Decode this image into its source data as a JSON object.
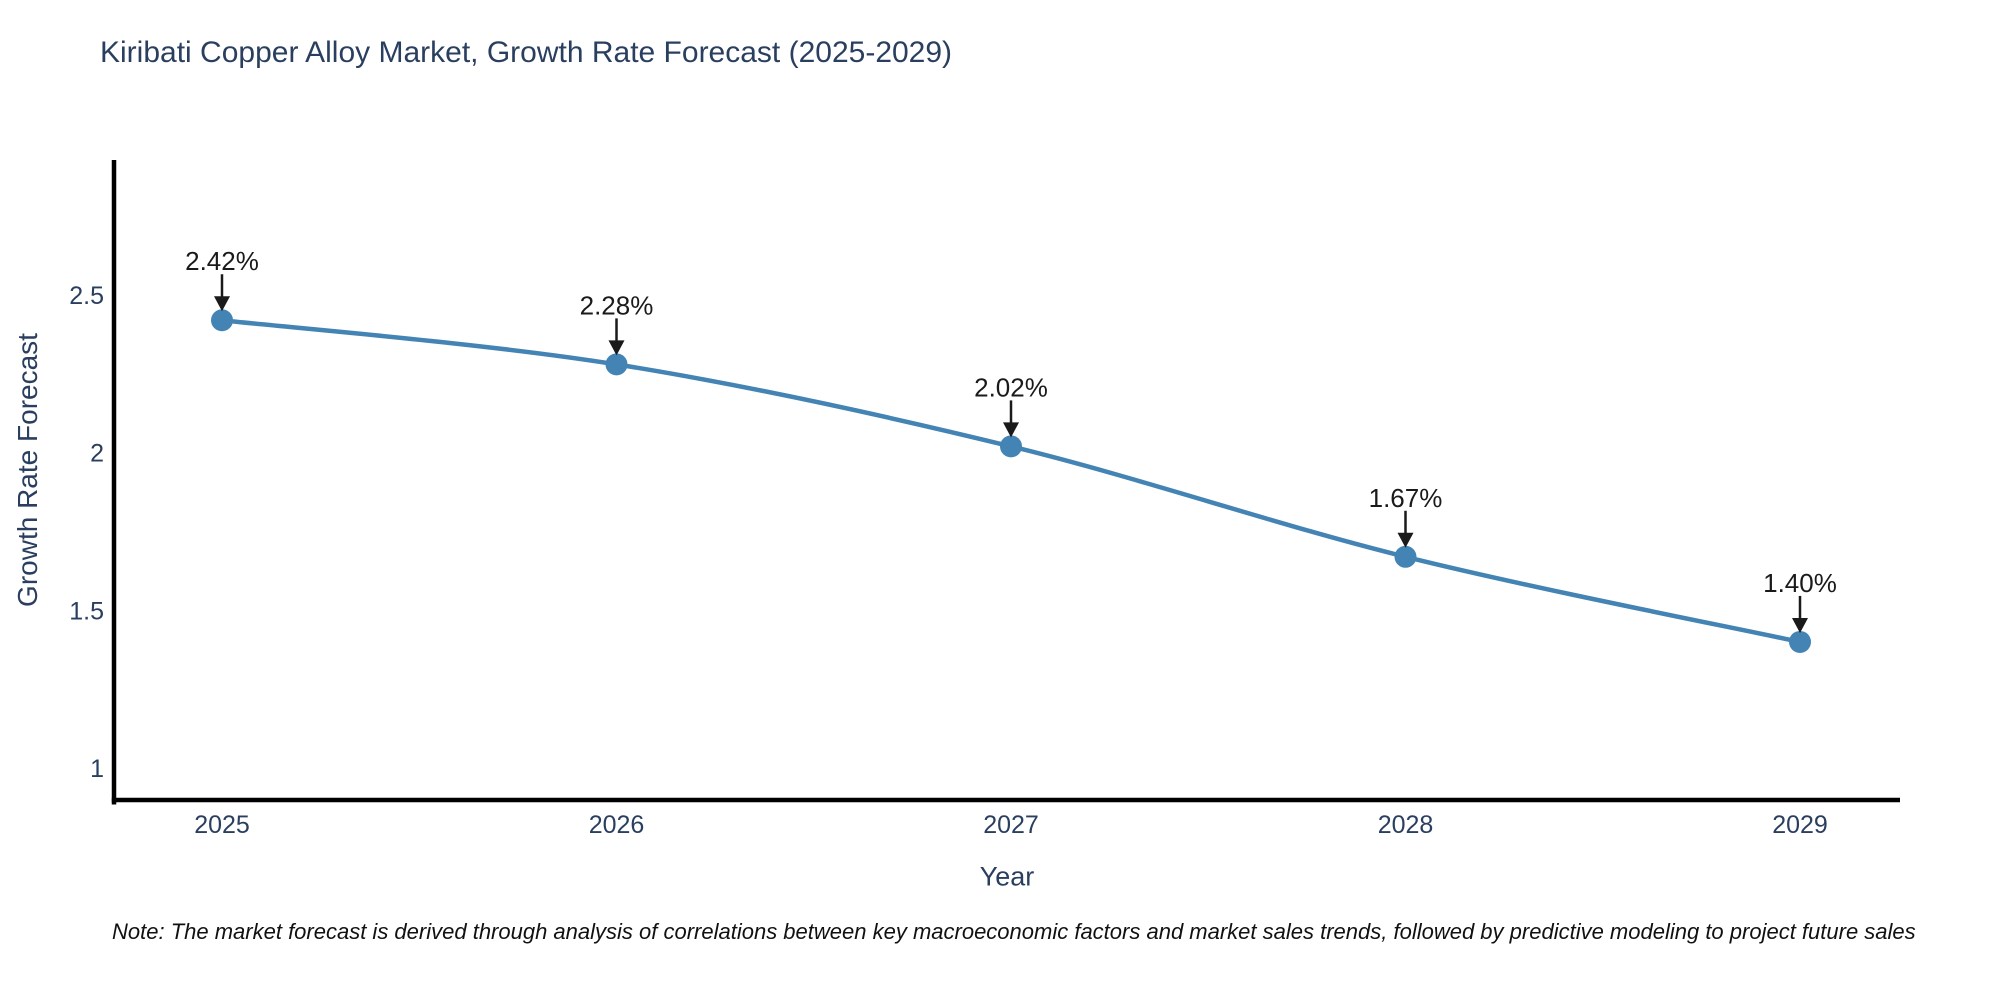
{
  "title": "Kiribati Copper Alloy Market, Growth Rate Forecast (2025-2029)",
  "note": "Note: The market forecast is derived through analysis of correlations between key macroeconomic factors and market sales trends, followed by predictive modeling to project future sales",
  "chart_data": {
    "type": "line",
    "title": "Kiribati Copper Alloy Market, Growth Rate Forecast (2025-2029)",
    "xlabel": "Year",
    "ylabel": "Growth Rate Forecast",
    "categories": [
      "2025",
      "2026",
      "2027",
      "2028",
      "2029"
    ],
    "values": [
      2.42,
      2.28,
      2.02,
      1.67,
      1.4
    ],
    "point_labels": [
      "2.42%",
      "2.28%",
      "2.02%",
      "1.67%",
      "1.40%"
    ],
    "yticks": [
      1,
      1.5,
      2,
      2.5
    ],
    "ylim": [
      0.9,
      3.0
    ],
    "grid": false,
    "legend": "none",
    "line_shape": "spline",
    "annotations": "black arrows pointing down at each data point",
    "colors": {
      "line": "#4384b5",
      "marker": "#4384b5",
      "arrow": "#1a1a1a",
      "axis_line": "#000000",
      "label_text": "#2a3f5f",
      "background": "#ffffff"
    }
  }
}
